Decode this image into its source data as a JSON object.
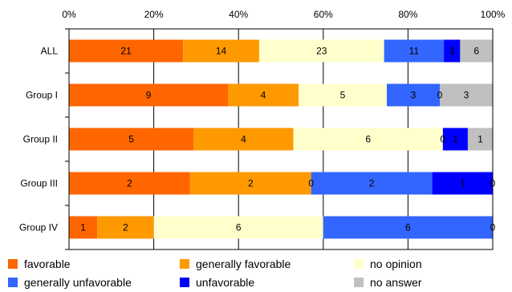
{
  "chart_data": {
    "type": "bar",
    "orientation": "horizontal",
    "stacked": "percent",
    "categories": [
      "ALL",
      "Group I",
      "Group II",
      "Group III",
      "Group IV"
    ],
    "series": [
      {
        "name": "favorable",
        "color": "#ff6600",
        "values": [
          21,
          9,
          5,
          2,
          1
        ]
      },
      {
        "name": "generally favorable",
        "color": "#ff9900",
        "values": [
          14,
          4,
          4,
          2,
          2
        ]
      },
      {
        "name": "no opinion",
        "color": "#ffffcc",
        "values": [
          23,
          5,
          6,
          0,
          6
        ]
      },
      {
        "name": "generally unfavorable",
        "color": "#3366ff",
        "values": [
          11,
          3,
          0,
          2,
          6
        ]
      },
      {
        "name": "unfavorable",
        "color": "#0000ff",
        "values": [
          3,
          0,
          1,
          1,
          0
        ]
      },
      {
        "name": "no answer",
        "color": "#c0c0c0",
        "values": [
          6,
          3,
          1,
          0,
          0
        ]
      }
    ],
    "data_labels": [
      [
        "21",
        "14",
        "23",
        "11",
        "3",
        "6"
      ],
      [
        "9",
        "4",
        "5",
        "3",
        "0",
        "3"
      ],
      [
        "5",
        "4",
        "6",
        "0",
        "1",
        "1"
      ],
      [
        "2",
        "2",
        "0",
        "2",
        "1",
        "0"
      ],
      [
        "1",
        "2",
        "6",
        "6",
        "0",
        ""
      ]
    ],
    "x_ticks": [
      "0%",
      "20%",
      "40%",
      "60%",
      "80%",
      "100%"
    ],
    "xlim": [
      0,
      100
    ],
    "grid": true,
    "legend_position": "bottom",
    "title": "",
    "xlabel": "",
    "ylabel": ""
  }
}
